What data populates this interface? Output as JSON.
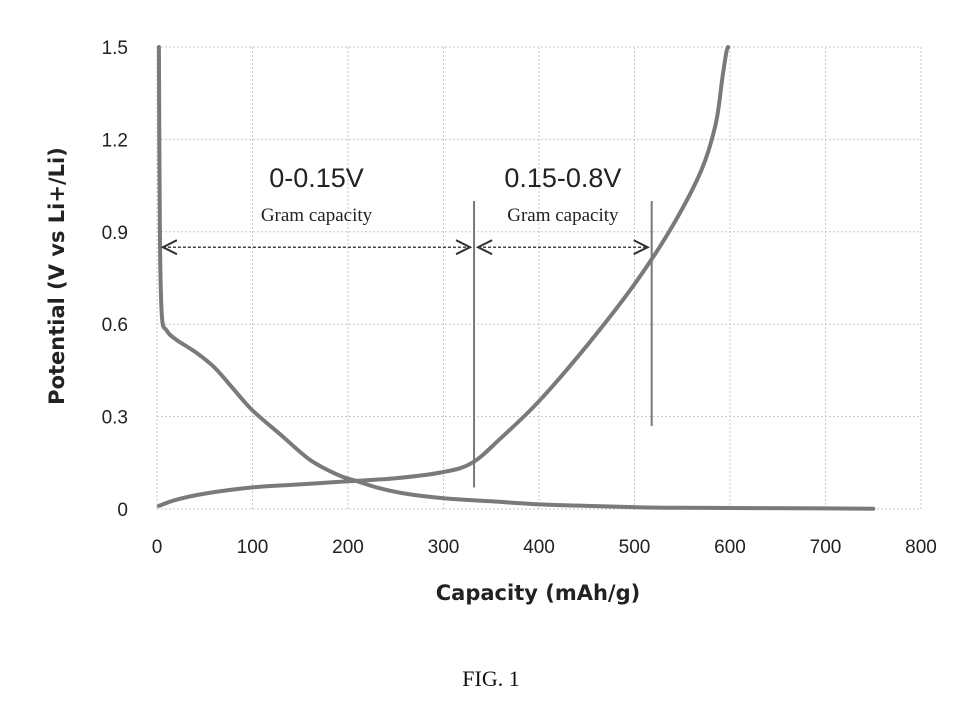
{
  "chart_data": {
    "type": "line",
    "xlabel": "Capacity (mAh/g)",
    "ylabel": "Potential (V vs Li+/Li)",
    "xlim": [
      0,
      800
    ],
    "ylim": [
      0,
      1.5
    ],
    "x_ticks": [
      0,
      100,
      200,
      300,
      400,
      500,
      600,
      700,
      800
    ],
    "y_ticks": [
      {
        "value": 0,
        "label": "0"
      },
      {
        "value": 0.3,
        "label": "0.3"
      },
      {
        "value": 0.6,
        "label": "0.6"
      },
      {
        "value": 0.9,
        "label": "0.9"
      },
      {
        "value": 1.2,
        "label": "1.2"
      },
      {
        "value": 1.5,
        "label": "1.5"
      }
    ],
    "grid": true,
    "series": [
      {
        "x": [
          2,
          3,
          5,
          10,
          20,
          40,
          60,
          80,
          100,
          130,
          160,
          190,
          210,
          230,
          260,
          300,
          350,
          400,
          450,
          500,
          550,
          700,
          750
        ],
        "y": [
          1.5,
          0.9,
          0.63,
          0.58,
          0.55,
          0.51,
          0.46,
          0.39,
          0.32,
          0.24,
          0.16,
          0.11,
          0.09,
          0.07,
          0.05,
          0.035,
          0.025,
          0.015,
          0.01,
          0.006,
          0.004,
          0.002,
          0.001
        ]
      },
      {
        "x": [
          2,
          20,
          50,
          100,
          150,
          200,
          250,
          300,
          330,
          360,
          400,
          450,
          500,
          540,
          570,
          585,
          592,
          596,
          598
        ],
        "y": [
          0.01,
          0.03,
          0.05,
          0.07,
          0.08,
          0.09,
          0.1,
          0.12,
          0.15,
          0.23,
          0.35,
          0.53,
          0.73,
          0.92,
          1.1,
          1.25,
          1.4,
          1.48,
          1.5
        ]
      }
    ],
    "markers": [
      {
        "x": 332,
        "y_from": 0.07,
        "y_to": 1.0
      },
      {
        "x": 518,
        "y_from": 0.27,
        "y_to": 1.0
      }
    ],
    "annotations": [
      {
        "text_main": "0-0.15V",
        "text_sub": "Gram capacity",
        "x_from": 2,
        "x_to": 332,
        "y": 0.85
      },
      {
        "text_main": "0.15-0.8V",
        "text_sub": "Gram capacity",
        "x_from": 332,
        "x_to": 518,
        "y": 0.85
      }
    ]
  },
  "caption": "FIG. 1"
}
